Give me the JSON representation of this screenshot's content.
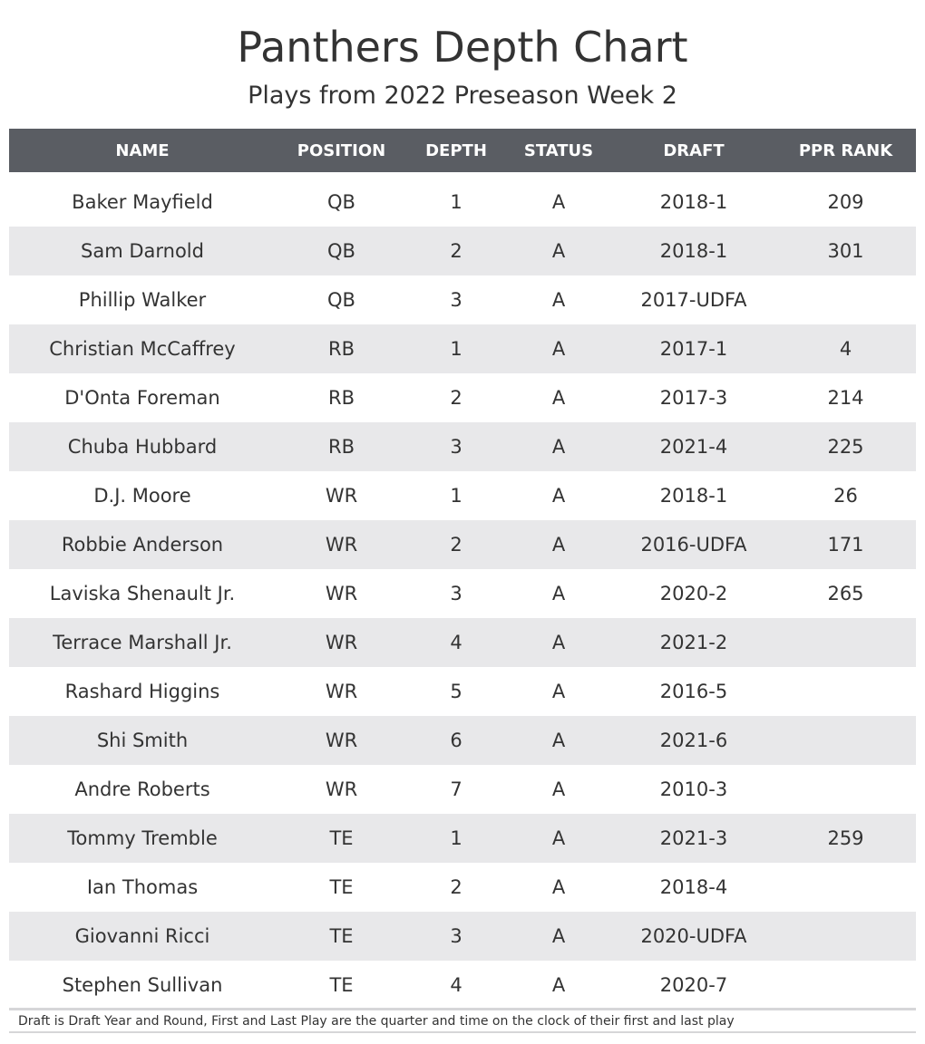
{
  "title": "Panthers Depth Chart",
  "subtitle": "Plays from 2022 Preseason Week 2",
  "table": {
    "columns": [
      "NAME",
      "POSITION",
      "DEPTH",
      "STATUS",
      "DRAFT",
      "PPR RANK"
    ],
    "rows": [
      {
        "name": "Baker Mayfield",
        "position": "QB",
        "depth": "1",
        "status": "A",
        "draft": "2018-1",
        "ppr_rank": "209"
      },
      {
        "name": "Sam Darnold",
        "position": "QB",
        "depth": "2",
        "status": "A",
        "draft": "2018-1",
        "ppr_rank": "301"
      },
      {
        "name": "Phillip Walker",
        "position": "QB",
        "depth": "3",
        "status": "A",
        "draft": "2017-UDFA",
        "ppr_rank": ""
      },
      {
        "name": "Christian McCaffrey",
        "position": "RB",
        "depth": "1",
        "status": "A",
        "draft": "2017-1",
        "ppr_rank": "4"
      },
      {
        "name": "D'Onta Foreman",
        "position": "RB",
        "depth": "2",
        "status": "A",
        "draft": "2017-3",
        "ppr_rank": "214"
      },
      {
        "name": "Chuba Hubbard",
        "position": "RB",
        "depth": "3",
        "status": "A",
        "draft": "2021-4",
        "ppr_rank": "225"
      },
      {
        "name": "D.J. Moore",
        "position": "WR",
        "depth": "1",
        "status": "A",
        "draft": "2018-1",
        "ppr_rank": "26"
      },
      {
        "name": "Robbie Anderson",
        "position": "WR",
        "depth": "2",
        "status": "A",
        "draft": "2016-UDFA",
        "ppr_rank": "171"
      },
      {
        "name": "Laviska Shenault Jr.",
        "position": "WR",
        "depth": "3",
        "status": "A",
        "draft": "2020-2",
        "ppr_rank": "265"
      },
      {
        "name": "Terrace Marshall Jr.",
        "position": "WR",
        "depth": "4",
        "status": "A",
        "draft": "2021-2",
        "ppr_rank": ""
      },
      {
        "name": "Rashard Higgins",
        "position": "WR",
        "depth": "5",
        "status": "A",
        "draft": "2016-5",
        "ppr_rank": ""
      },
      {
        "name": "Shi Smith",
        "position": "WR",
        "depth": "6",
        "status": "A",
        "draft": "2021-6",
        "ppr_rank": ""
      },
      {
        "name": "Andre Roberts",
        "position": "WR",
        "depth": "7",
        "status": "A",
        "draft": "2010-3",
        "ppr_rank": ""
      },
      {
        "name": "Tommy Tremble",
        "position": "TE",
        "depth": "1",
        "status": "A",
        "draft": "2021-3",
        "ppr_rank": "259"
      },
      {
        "name": "Ian Thomas",
        "position": "TE",
        "depth": "2",
        "status": "A",
        "draft": "2018-4",
        "ppr_rank": ""
      },
      {
        "name": "Giovanni Ricci",
        "position": "TE",
        "depth": "3",
        "status": "A",
        "draft": "2020-UDFA",
        "ppr_rank": ""
      },
      {
        "name": "Stephen Sullivan",
        "position": "TE",
        "depth": "4",
        "status": "A",
        "draft": "2020-7",
        "ppr_rank": ""
      }
    ]
  },
  "footer": "Draft is Draft Year and Round, First and Last Play are the quarter and time on the clock of their first and last play",
  "colors": {
    "header_bg": "#5a5d63",
    "stripe_bg": "#e8e8ea",
    "text": "#333333"
  }
}
